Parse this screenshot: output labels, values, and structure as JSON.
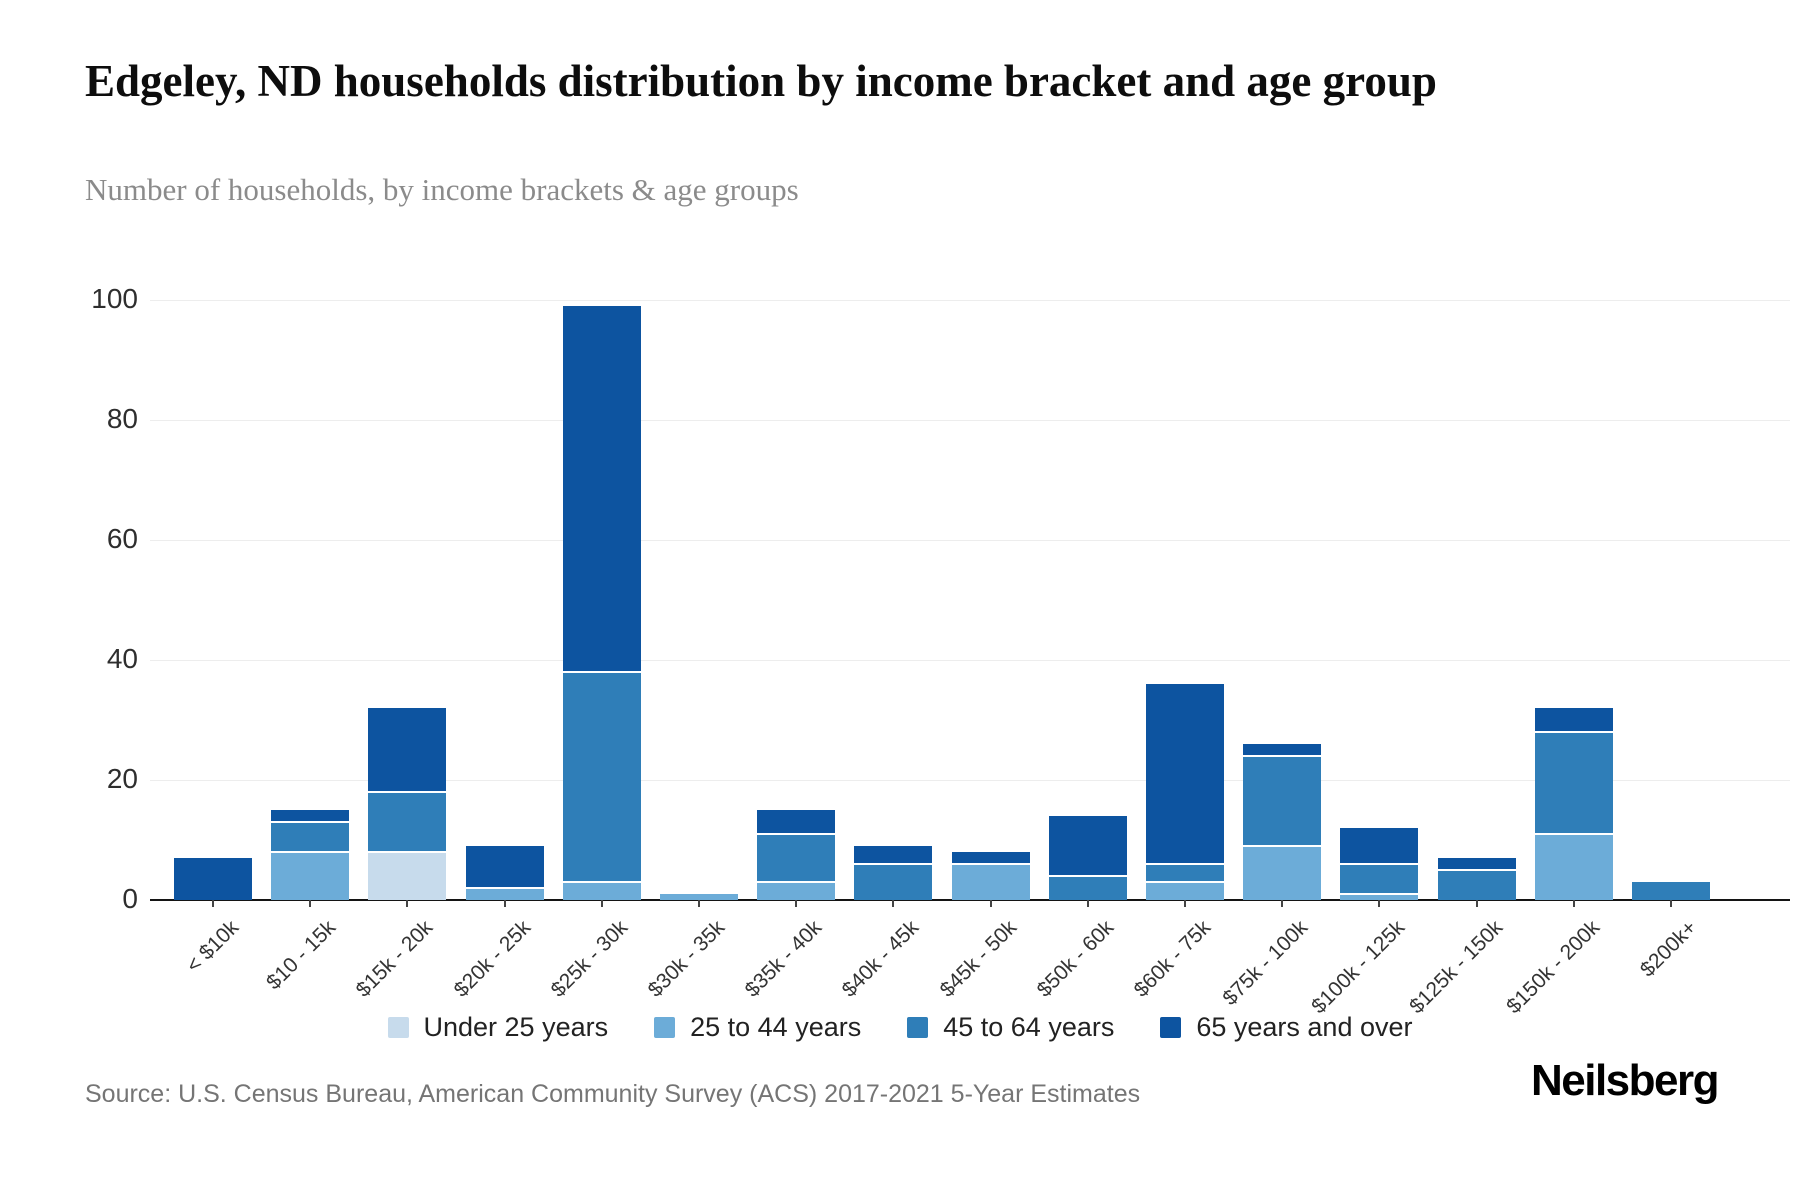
{
  "title": "Edgeley, ND households distribution by income bracket and age group",
  "subtitle": "Number of households, by income brackets & age groups",
  "source_note": "Source: U.S. Census Bureau, American Community Survey (ACS) 2017-2021 5-Year Estimates",
  "brand": "Neilsberg",
  "chart_data": {
    "type": "bar",
    "stacked": true,
    "title": "Edgeley, ND households distribution by income bracket and age group",
    "xlabel": "",
    "ylabel": "Number of households",
    "ylim": [
      0,
      100
    ],
    "yticks": [
      0,
      20,
      40,
      60,
      80,
      100
    ],
    "grid": true,
    "legend_position": "bottom",
    "categories": [
      "< $10k",
      "$10 - 15k",
      "$15k - 20k",
      "$20k - 25k",
      "$25k - 30k",
      "$30k - 35k",
      "$35k - 40k",
      "$40k - 45k",
      "$45k - 50k",
      "$50k - 60k",
      "$60k - 75k",
      "$75k - 100k",
      "$100k - 125k",
      "$125k - 150k",
      "$150k - 200k",
      "$200k+"
    ],
    "series": [
      {
        "name": "Under 25 years",
        "color": "#c7dbec",
        "values": [
          0,
          0,
          8,
          0,
          0,
          0,
          0,
          0,
          0,
          0,
          0,
          0,
          0,
          0,
          0,
          0
        ]
      },
      {
        "name": "25 to 44 years",
        "color": "#6cacd8",
        "values": [
          0,
          8,
          0,
          2,
          3,
          1,
          3,
          0,
          6,
          0,
          3,
          9,
          1,
          0,
          11,
          0
        ]
      },
      {
        "name": "45 to 64 years",
        "color": "#2f7eb8",
        "values": [
          0,
          5,
          10,
          0,
          35,
          0,
          8,
          6,
          0,
          4,
          3,
          15,
          5,
          5,
          17,
          3
        ]
      },
      {
        "name": "65 years and over",
        "color": "#0d54a0",
        "values": [
          7,
          2,
          14,
          7,
          61,
          0,
          4,
          3,
          2,
          10,
          30,
          2,
          6,
          2,
          4,
          0
        ]
      }
    ],
    "totals": [
      7,
      15,
      32,
      9,
      99,
      1,
      15,
      9,
      8,
      14,
      36,
      26,
      12,
      7,
      32,
      3
    ]
  }
}
